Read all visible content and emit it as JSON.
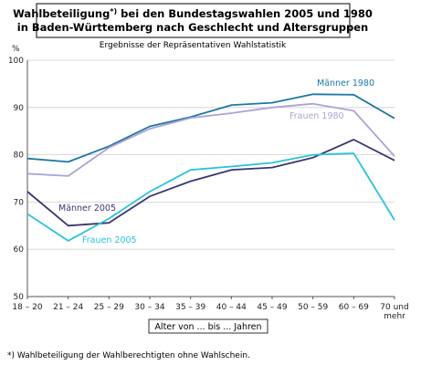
{
  "chart_data": {
    "type": "line",
    "title_line1": "Wahlbeteiligung",
    "title_sup": "*)",
    "title_line1_rest": " bei den Bundestagswahlen 2005 und 1980",
    "title_line2": "in Baden-Württemberg nach Geschlecht und Altersgruppen",
    "subtitle": "Ergebnisse der Repräsentativen Wahlstatistik",
    "y_unit": "%",
    "xlabel": "Alter von ... bis ... Jahren",
    "categories": [
      "18 – 20",
      "21 – 24",
      "25 – 29",
      "30 – 34",
      "35 – 39",
      "40 – 44",
      "45 – 49",
      "50 – 59",
      "60 – 69",
      "70 und mehr"
    ],
    "categories_display": [
      [
        "18 – 20"
      ],
      [
        "21 – 24"
      ],
      [
        "25 – 29"
      ],
      [
        "30 – 34"
      ],
      [
        "35 – 39"
      ],
      [
        "40 – 44"
      ],
      [
        "45 – 49"
      ],
      [
        "50 – 59"
      ],
      [
        "60 – 69"
      ],
      [
        "70 und",
        "mehr"
      ]
    ],
    "yticks": [
      50,
      60,
      70,
      80,
      90,
      100
    ],
    "ylim": [
      50,
      100
    ],
    "grid": "horizontal",
    "series": [
      {
        "name": "Männer 1980",
        "color": "#1f77a5",
        "values": [
          79.2,
          78.5,
          81.8,
          86.0,
          88.0,
          90.5,
          91.0,
          92.8,
          92.7,
          87.7
        ]
      },
      {
        "name": "Frauen 1980",
        "color": "#a9a4d6",
        "values": [
          76.0,
          75.5,
          81.5,
          85.5,
          87.8,
          88.8,
          90.0,
          90.8,
          89.3,
          79.7
        ]
      },
      {
        "name": "Männer 2005",
        "color": "#3c3670",
        "values": [
          72.2,
          65.0,
          65.6,
          71.2,
          74.4,
          76.8,
          77.3,
          79.4,
          83.2,
          78.8
        ]
      },
      {
        "name": "Frauen 2005",
        "color": "#29c4dc",
        "values": [
          67.5,
          61.8,
          66.5,
          72.2,
          76.8,
          77.5,
          78.3,
          80.0,
          80.3,
          66.2
        ]
      }
    ],
    "footnote": "*) Wahlbeteiligung der Wahlberechtigten ohne Wahlschein."
  }
}
